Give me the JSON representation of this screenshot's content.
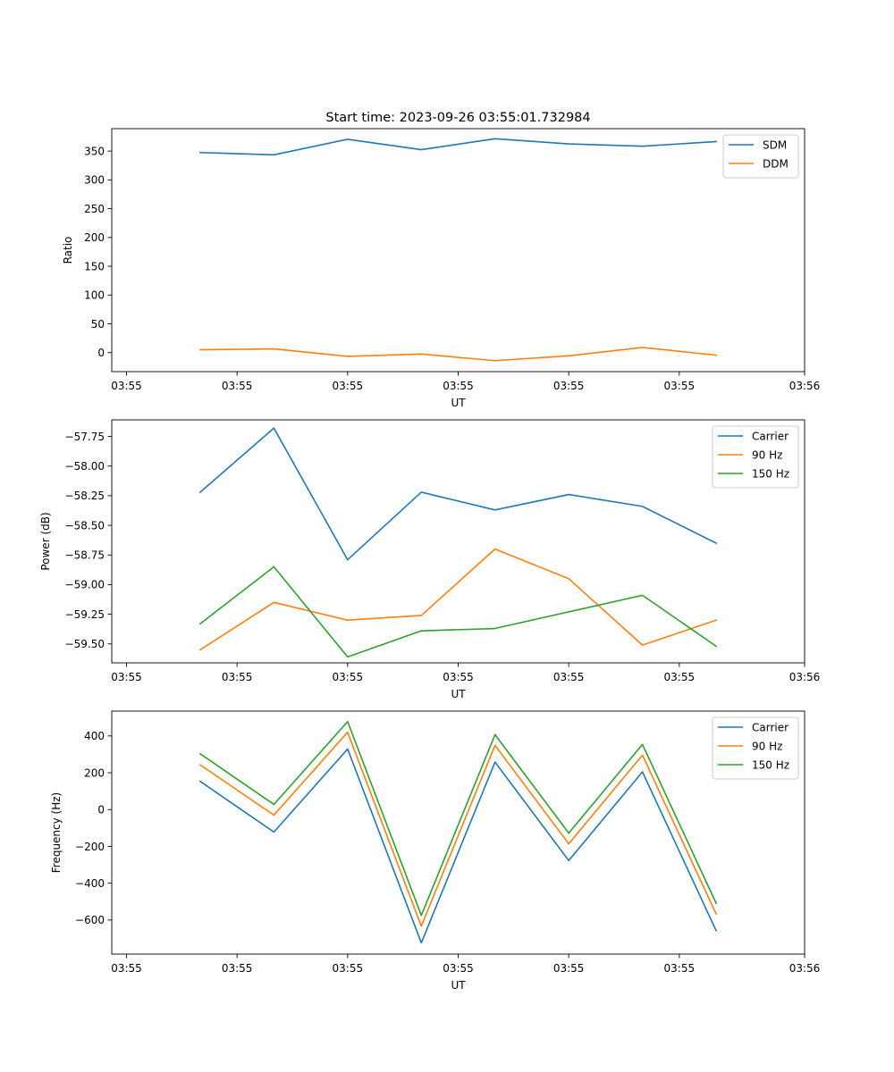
{
  "figure": {
    "title": "Start time: 2023-09-26 03:55:01.732984"
  },
  "chart_data": [
    {
      "type": "line",
      "title": "Start time: 2023-09-26 03:55:01.732984",
      "xlabel": "UT",
      "ylabel": "Ratio",
      "x": [
        1,
        2,
        3,
        4,
        5,
        6,
        7,
        8
      ],
      "xlim": [
        -0.2,
        9.2
      ],
      "xticks": [
        0,
        1.5,
        3,
        4.5,
        6,
        7.5,
        9.2
      ],
      "xtick_labels": [
        "03:55",
        "03:55",
        "03:55",
        "03:55",
        "03:55",
        "03:55",
        "03:56"
      ],
      "ylim": [
        -33,
        389
      ],
      "yticks": [
        0,
        50,
        100,
        150,
        200,
        250,
        300,
        350
      ],
      "ytick_labels": [
        "0",
        "50",
        "100",
        "150",
        "200",
        "250",
        "300",
        "350"
      ],
      "grid": false,
      "legend_position": "top-right",
      "series": [
        {
          "name": "SDM",
          "color": "#1f77b4",
          "values": [
            347.5,
            343.5,
            370.5,
            352.5,
            371.5,
            362.5,
            358.5,
            366.5
          ]
        },
        {
          "name": "DDM",
          "color": "#ff7f0e",
          "values": [
            5,
            6.5,
            -6.5,
            -2.5,
            -14,
            -5.5,
            9,
            -4.5
          ]
        }
      ]
    },
    {
      "type": "line",
      "title": "",
      "xlabel": "UT",
      "ylabel": "Power (dB)",
      "x": [
        1,
        2,
        3,
        4,
        5,
        6,
        7,
        8
      ],
      "xlim": [
        -0.2,
        9.2
      ],
      "xticks": [
        0,
        1.5,
        3,
        4.5,
        6,
        7.5,
        9.2
      ],
      "xtick_labels": [
        "03:55",
        "03:55",
        "03:55",
        "03:55",
        "03:55",
        "03:55",
        "03:56"
      ],
      "ylim": [
        -59.66,
        -57.61
      ],
      "yticks": [
        -57.75,
        -58.0,
        -58.25,
        -58.5,
        -58.75,
        -59.0,
        -59.25,
        -59.5
      ],
      "ytick_labels": [
        "−57.75",
        "−58.00",
        "−58.25",
        "−58.50",
        "−58.75",
        "−59.00",
        "−59.25",
        "−59.50"
      ],
      "grid": false,
      "legend_position": "top-right",
      "series": [
        {
          "name": "Carrier",
          "color": "#1f77b4",
          "values": [
            -58.22,
            -57.68,
            -58.79,
            -58.22,
            -58.37,
            -58.24,
            -58.34,
            -58.65
          ]
        },
        {
          "name": "90 Hz",
          "color": "#ff7f0e",
          "values": [
            -59.55,
            -59.15,
            -59.3,
            -59.26,
            -58.7,
            -58.95,
            -59.51,
            -59.3
          ]
        },
        {
          "name": "150 Hz",
          "color": "#2ca02c",
          "values": [
            -59.33,
            -58.85,
            -59.61,
            -59.39,
            -59.37,
            -59.23,
            -59.09,
            -59.52
          ]
        }
      ]
    },
    {
      "type": "line",
      "title": "",
      "xlabel": "UT",
      "ylabel": "Frequency (Hz)",
      "x": [
        1,
        2,
        3,
        4,
        5,
        6,
        7,
        8
      ],
      "xlim": [
        -0.2,
        9.2
      ],
      "xticks": [
        0,
        1.5,
        3,
        4.5,
        6,
        7.5,
        9.2
      ],
      "xtick_labels": [
        "03:55",
        "03:55",
        "03:55",
        "03:55",
        "03:55",
        "03:55",
        "03:56"
      ],
      "ylim": [
        -785,
        535
      ],
      "yticks": [
        400,
        200,
        0,
        -200,
        -400,
        -600
      ],
      "ytick_labels": [
        "400",
        "200",
        "0",
        "−200",
        "−400",
        "−600"
      ],
      "grid": false,
      "legend_position": "top-right",
      "series": [
        {
          "name": "Carrier",
          "color": "#1f77b4",
          "values": [
            153,
            -122,
            329,
            -724,
            258,
            -277,
            205,
            -658
          ]
        },
        {
          "name": "90 Hz",
          "color": "#ff7f0e",
          "values": [
            243,
            -30,
            420,
            -633,
            349,
            -186,
            296,
            -567
          ]
        },
        {
          "name": "150 Hz",
          "color": "#2ca02c",
          "values": [
            303,
            28,
            478,
            -575,
            407,
            -128,
            354,
            -509
          ]
        }
      ]
    }
  ]
}
